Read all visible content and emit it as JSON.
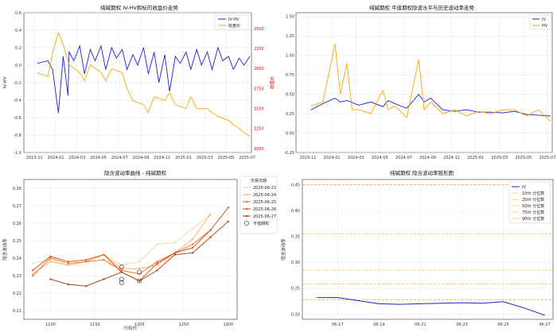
{
  "chart_data": [
    {
      "type": "line",
      "title": "纯碱期权 IV-HV和标的收盘价走势",
      "ylabel": "IV-HV",
      "y2label": "收盘价",
      "ylim": [
        -1.0,
        0.6
      ],
      "y2lim": [
        950,
        2700
      ],
      "yticks": [
        "0.6",
        "0.4",
        "0.2",
        "0.0",
        "-0.2",
        "-0.4",
        "-0.6",
        "-0.8",
        "-1.0"
      ],
      "y2ticks": [
        "2500",
        "2250",
        "2000",
        "1750",
        "1500",
        "1250",
        "1000"
      ],
      "y2tick_values": [
        2500,
        2250,
        2000,
        1750,
        1500,
        1250,
        1000
      ],
      "xticks": [
        "2023-11",
        "2024-01",
        "2024-03",
        "2024-05",
        "2024-07",
        "2024-09",
        "2024-11",
        "2025-01",
        "2025-03",
        "2025-05",
        "2025-07"
      ],
      "legend": [
        "IV-HV",
        "收盘价"
      ],
      "grid": true,
      "colors": {
        "IV-HV": "#1f1fd6",
        "收盘价": "#ffa500"
      },
      "series": [
        {
          "name": "IV-HV",
          "axis": "left",
          "x": [
            "2023-11",
            "2023-12",
            "2023-12",
            "2024-01",
            "2024-01",
            "2024-01",
            "2024-02",
            "2024-02",
            "2024-03",
            "2024-03",
            "2024-04",
            "2024-04",
            "2024-05",
            "2024-05",
            "2024-06",
            "2024-06",
            "2024-07",
            "2024-07",
            "2024-08",
            "2024-08",
            "2024-09",
            "2024-09",
            "2024-10",
            "2024-10",
            "2024-11",
            "2024-11",
            "2024-12",
            "2024-12",
            "2025-01",
            "2025-01",
            "2025-02",
            "2025-02",
            "2025-03",
            "2025-03",
            "2025-04",
            "2025-04",
            "2025-05",
            "2025-05",
            "2025-06",
            "2025-06",
            "2025-07"
          ],
          "values": [
            0.02,
            0.05,
            -0.05,
            -0.55,
            0.1,
            -0.35,
            0.15,
            0.05,
            0.22,
            -0.1,
            0.18,
            0.05,
            0.22,
            -0.05,
            0.2,
            0.08,
            0.18,
            -0.05,
            0.12,
            0.0,
            0.2,
            -0.1,
            0.15,
            -0.2,
            0.12,
            -0.3,
            0.1,
            0.02,
            0.15,
            -0.05,
            0.18,
            0.0,
            0.15,
            -0.05,
            0.2,
            0.05,
            0.1,
            -0.05,
            0.08,
            0.0,
            0.1
          ]
        },
        {
          "name": "收盘价",
          "axis": "right",
          "x": [
            "2023-11",
            "2023-12",
            "2023-12",
            "2024-01",
            "2024-01",
            "2024-02",
            "2024-03",
            "2024-03",
            "2024-04",
            "2024-05",
            "2024-05",
            "2024-06",
            "2024-07",
            "2024-07",
            "2024-08",
            "2024-09",
            "2024-09",
            "2024-10",
            "2024-11",
            "2024-11",
            "2024-12",
            "2025-01",
            "2025-01",
            "2025-02",
            "2025-03",
            "2025-03",
            "2025-04",
            "2025-05",
            "2025-05",
            "2025-06",
            "2025-06",
            "2025-07"
          ],
          "values": [
            1950,
            1900,
            2200,
            2450,
            2300,
            2050,
            1950,
            1850,
            2050,
            1950,
            1850,
            2000,
            1950,
            1750,
            1600,
            1550,
            1450,
            1650,
            1600,
            1700,
            1550,
            1500,
            1650,
            1500,
            1500,
            1450,
            1400,
            1350,
            1300,
            1250,
            1200,
            1150
          ]
        }
      ]
    },
    {
      "type": "line",
      "title": "纯碱期权 平值期权隐波水平与历史波动率走势",
      "ylim": [
        -0.25,
        1.55
      ],
      "yticks": [
        "1.50",
        "1.25",
        "1.00",
        "0.75",
        "0.50",
        "0.25",
        "0.00",
        "-0.25"
      ],
      "xticks": [
        "2023-11",
        "2024-01",
        "2024-03",
        "2024-05",
        "2024-07",
        "2024-09",
        "2024-11",
        "2025-01",
        "2025-03",
        "2025-05",
        "2025-07"
      ],
      "legend": [
        "IV",
        "HV"
      ],
      "grid": true,
      "colors": {
        "IV": "#1f1fd6",
        "HV": "#ffa500"
      },
      "series": [
        {
          "name": "IV",
          "x": [
            "2023-11",
            "2023-12",
            "2024-01",
            "2024-01",
            "2024-02",
            "2024-03",
            "2024-04",
            "2024-05",
            "2024-05",
            "2024-06",
            "2024-07",
            "2024-08",
            "2024-08",
            "2024-09",
            "2024-10",
            "2024-11",
            "2024-12",
            "2025-01",
            "2025-02",
            "2025-03",
            "2025-04",
            "2025-05",
            "2025-06",
            "2025-07"
          ],
          "values": [
            0.3,
            0.38,
            0.45,
            0.4,
            0.42,
            0.36,
            0.4,
            0.34,
            0.42,
            0.38,
            0.32,
            0.5,
            0.4,
            0.45,
            0.3,
            0.28,
            0.3,
            0.27,
            0.27,
            0.26,
            0.28,
            0.24,
            0.23,
            0.22
          ]
        },
        {
          "name": "HV",
          "x": [
            "2023-11",
            "2023-12",
            "2024-01",
            "2024-01",
            "2024-02",
            "2024-02",
            "2024-03",
            "2024-04",
            "2024-05",
            "2024-05",
            "2024-06",
            "2024-07",
            "2024-08",
            "2024-08",
            "2024-09",
            "2024-10",
            "2024-11",
            "2024-12",
            "2025-01",
            "2025-02",
            "2025-03",
            "2025-04",
            "2025-05",
            "2025-06",
            "2025-07"
          ],
          "values": [
            0.35,
            0.4,
            1.15,
            0.5,
            0.9,
            0.3,
            0.3,
            0.25,
            0.55,
            0.3,
            0.35,
            0.2,
            0.95,
            0.3,
            0.4,
            0.25,
            0.3,
            0.22,
            0.28,
            0.25,
            0.3,
            0.3,
            0.22,
            0.3,
            0.15
          ]
        }
      ]
    },
    {
      "type": "line",
      "title": "隐含波动率曲线 - 纯碱期权",
      "xlabel": "行权价",
      "ylabel": "隐含波动率",
      "xlim": [
        1070,
        1310
      ],
      "ylim": [
        0.205,
        0.285
      ],
      "xticks": [
        "1100",
        "1150",
        "1200",
        "1250",
        "1300"
      ],
      "xtick_values": [
        1100,
        1150,
        1200,
        1250,
        1300
      ],
      "yticks": [
        "0.28",
        "0.27",
        "0.26",
        "0.25",
        "0.24",
        "0.23",
        "0.22",
        "0.21"
      ],
      "ytick_values": [
        0.28,
        0.27,
        0.26,
        0.25,
        0.24,
        0.23,
        0.22,
        0.21
      ],
      "legend_title": "交易日期",
      "legend": [
        "2025-06-23",
        "2025-06-24",
        "2025-06-25",
        "2025-06-26",
        "2025-06-27",
        "平值期权"
      ],
      "grid": true,
      "series": [
        {
          "name": "2025-06-23",
          "color": "#fdd49e",
          "x": [
            1080,
            1100,
            1120,
            1140,
            1160,
            1180,
            1200,
            1220,
            1240,
            1260,
            1280
          ],
          "values": [
            0.237,
            0.239,
            0.236,
            0.238,
            0.242,
            0.236,
            0.238,
            0.248,
            0.249,
            0.257,
            0.265
          ]
        },
        {
          "name": "2025-06-24",
          "color": "#fdae6b",
          "x": [
            1080,
            1100,
            1120,
            1140,
            1160,
            1180,
            1200,
            1220,
            1240,
            1260,
            1280
          ],
          "values": [
            0.231,
            0.238,
            0.236,
            0.238,
            0.242,
            0.234,
            0.234,
            0.236,
            0.243,
            0.251,
            0.265
          ]
        },
        {
          "name": "2025-06-25",
          "color": "#f16913",
          "x": [
            1080,
            1100,
            1120,
            1140,
            1160,
            1180,
            1200,
            1220,
            1240,
            1260,
            1280
          ],
          "values": [
            0.23,
            0.24,
            0.237,
            0.238,
            0.239,
            0.233,
            0.231,
            0.238,
            0.243,
            0.248,
            0.256
          ]
        },
        {
          "name": "2025-06-26",
          "color": "#d94801",
          "x": [
            1080,
            1100,
            1120,
            1140,
            1160,
            1180,
            1200,
            1220,
            1240,
            1260,
            1280,
            1300
          ],
          "values": [
            0.233,
            0.241,
            0.238,
            0.239,
            0.242,
            0.232,
            0.227,
            0.237,
            0.243,
            0.246,
            0.256,
            0.269
          ]
        },
        {
          "name": "2025-06-27",
          "color": "#a63603",
          "x": [
            1100,
            1120,
            1140,
            1160,
            1180,
            1200,
            1220,
            1240,
            1260,
            1280,
            1300
          ],
          "values": [
            0.228,
            0.225,
            0.224,
            0.228,
            0.232,
            0.227,
            0.233,
            0.242,
            0.243,
            0.252,
            0.261
          ]
        }
      ],
      "atm_points": [
        {
          "x": 1180,
          "y": 0.235
        },
        {
          "x": 1180,
          "y": 0.228
        },
        {
          "x": 1180,
          "y": 0.226
        },
        {
          "x": 1200,
          "y": 0.232
        },
        {
          "x": 1200,
          "y": 0.227
        }
      ]
    },
    {
      "type": "line",
      "title": "纯碱期权 隐含波动率锥形图",
      "ylabel": "隐含波动率",
      "ylim": [
        0.19,
        0.46
      ],
      "yticks": [
        "0.45",
        "0.40",
        "0.35",
        "0.30",
        "0.25",
        "0.20"
      ],
      "ytick_values": [
        0.45,
        0.4,
        0.35,
        0.3,
        0.25,
        0.2
      ],
      "xticks": [
        "06-17",
        "06-19",
        "06-21",
        "06-23",
        "06-25",
        "06-27"
      ],
      "legend": [
        "IV",
        "10th 分位数",
        "25th 分位数",
        "50th 分位数",
        "75th 分位数",
        "90th 分位数"
      ],
      "grid": true,
      "colors": {
        "IV": "#1f1fd6",
        "quantile": "#ffa500"
      },
      "quantiles": [
        0.228,
        0.258,
        0.285,
        0.355,
        0.45
      ],
      "series": [
        {
          "name": "IV",
          "x": [
            "06-16",
            "06-17",
            "06-18",
            "06-19",
            "06-20",
            "06-21",
            "06-22",
            "06-23",
            "06-24",
            "06-25",
            "06-26",
            "06-27"
          ],
          "values": [
            0.232,
            0.232,
            0.226,
            0.22,
            0.219,
            0.22,
            0.221,
            0.222,
            0.221,
            0.224,
            0.212,
            0.198
          ]
        }
      ]
    }
  ]
}
